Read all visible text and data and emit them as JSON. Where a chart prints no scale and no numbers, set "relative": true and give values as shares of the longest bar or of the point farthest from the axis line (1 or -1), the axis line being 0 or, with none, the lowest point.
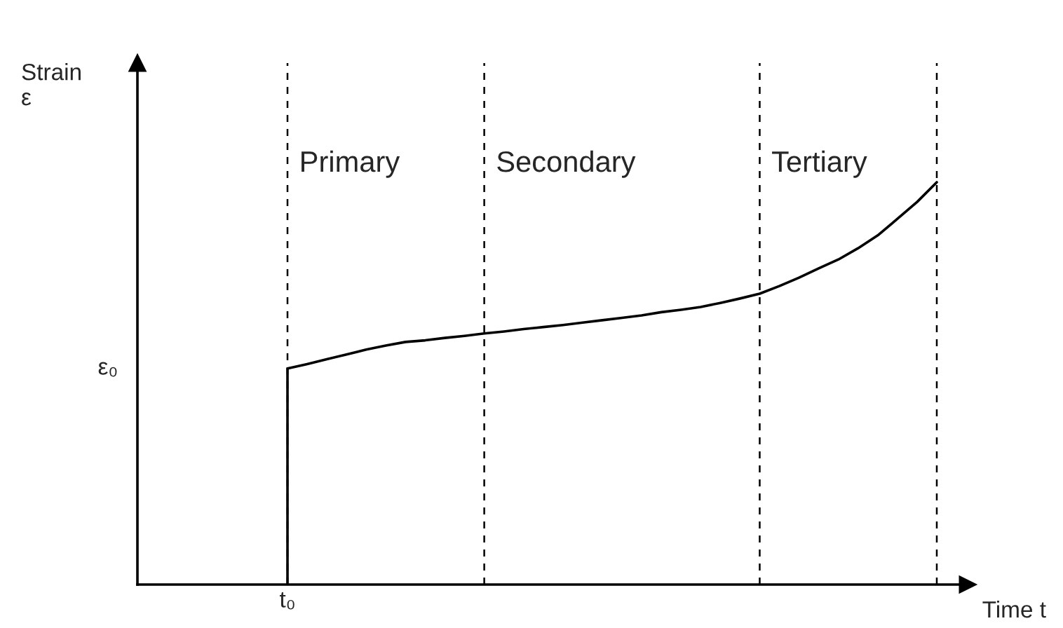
{
  "chart_data": {
    "type": "line",
    "relative": true,
    "xlabel": "Time t",
    "grid": "x",
    "categories": [
      null,
      null,
      null,
      null,
      null,
      null,
      null,
      null,
      null,
      null,
      null,
      null,
      null,
      null,
      null,
      null,
      null,
      null,
      null,
      null,
      null,
      null,
      null,
      null,
      null,
      null,
      null,
      null,
      null,
      null,
      null,
      null,
      null,
      null
    ],
    "series": [
      {
        "color": "#000000",
        "line_style": "solid",
        "values": [
          0.537,
          0.548,
          0.56,
          0.572,
          0.584,
          0.594,
          0.603,
          0.607,
          0.613,
          0.618,
          0.624,
          0.629,
          0.635,
          0.64,
          0.645,
          0.651,
          0.657,
          0.663,
          0.669,
          0.677,
          0.683,
          0.69,
          0.7,
          0.711,
          0.723,
          0.742,
          0.763,
          0.786,
          0.808,
          0.836,
          0.868,
          0.909,
          0.951,
          1
        ]
      }
    ],
    "annotations": [
      "Primary",
      "Secondary",
      "Tertiary",
      "ε₀",
      "t₀",
      "Strain\nε"
    ]
  }
}
